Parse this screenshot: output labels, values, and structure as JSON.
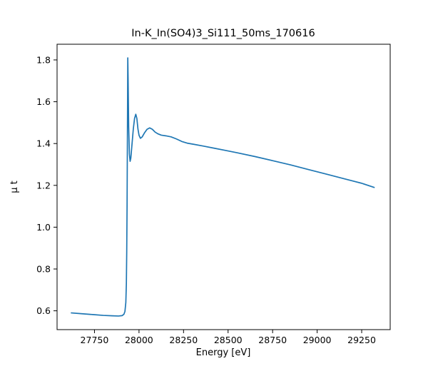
{
  "chart_data": {
    "type": "line",
    "title": "In-K_In(SO4)3_Si111_50ms_170616",
    "xlabel": "Energy [eV]",
    "ylabel": "μ t",
    "xlim": [
      27540,
      29410
    ],
    "ylim": [
      0.51,
      1.875
    ],
    "xticks": [
      27750,
      28000,
      28250,
      28500,
      28750,
      29000,
      29250
    ],
    "yticks": [
      0.6,
      0.8,
      1.0,
      1.2,
      1.4,
      1.6,
      1.8
    ],
    "grid": false,
    "legend": "none",
    "line_color": "#1f77b4",
    "background_color": "#ffffff",
    "series": [
      {
        "name": "mu_t_absorption",
        "x": [
          27620,
          27680,
          27740,
          27800,
          27850,
          27885,
          27905,
          27915,
          27921,
          27926,
          27929,
          27931,
          27933,
          27935,
          27937,
          27939,
          27942,
          27946,
          27950,
          27954,
          27960,
          27968,
          27975,
          27982,
          27988,
          27994,
          28000,
          28008,
          28018,
          28030,
          28045,
          28060,
          28075,
          28090,
          28105,
          28125,
          28150,
          28180,
          28210,
          28240,
          28270,
          28310,
          28360,
          28420,
          28480,
          28550,
          28650,
          28750,
          28850,
          28950,
          29050,
          29150,
          29250,
          29320
        ],
        "y": [
          0.59,
          0.586,
          0.582,
          0.578,
          0.576,
          0.575,
          0.577,
          0.583,
          0.597,
          0.64,
          0.73,
          0.88,
          1.1,
          1.45,
          1.81,
          1.7,
          1.48,
          1.35,
          1.315,
          1.33,
          1.39,
          1.47,
          1.52,
          1.54,
          1.52,
          1.47,
          1.44,
          1.425,
          1.432,
          1.45,
          1.468,
          1.475,
          1.468,
          1.455,
          1.447,
          1.44,
          1.437,
          1.432,
          1.422,
          1.41,
          1.402,
          1.396,
          1.388,
          1.378,
          1.368,
          1.356,
          1.338,
          1.318,
          1.298,
          1.276,
          1.254,
          1.232,
          1.21,
          1.19
        ]
      }
    ]
  }
}
